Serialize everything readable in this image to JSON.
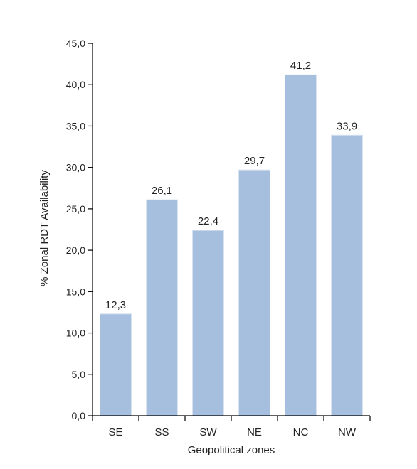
{
  "chart_data": {
    "type": "bar",
    "title": "",
    "xlabel": "Geopolitical zones",
    "ylabel": "% Zonal RDT Availability",
    "categories": [
      "SE",
      "SS",
      "SW",
      "NE",
      "NC",
      "NW"
    ],
    "values": [
      12.3,
      26.1,
      22.4,
      29.7,
      41.2,
      33.9
    ],
    "value_labels": [
      "12,3",
      "26,1",
      "22,4",
      "29,7",
      "41,2",
      "33,9"
    ],
    "ylim": [
      0,
      45
    ],
    "yticks": [
      "0,0",
      "5,0",
      "10,0",
      "15,0",
      "20,0",
      "25,0",
      "30,0",
      "35,0",
      "40,0",
      "45,0"
    ],
    "ytick_step": 5,
    "grid": false,
    "legend": "none",
    "bar_color": "#a7bfdf",
    "bar_edge_color": "#d9e3f0"
  }
}
